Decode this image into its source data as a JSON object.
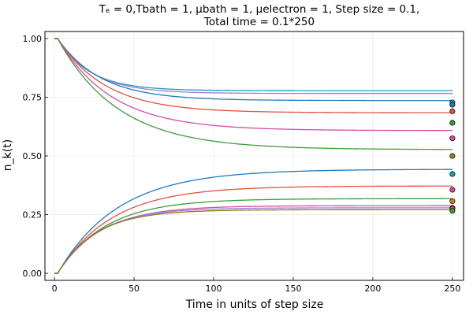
{
  "chart_data": {
    "type": "line",
    "title_line1": "Tₑ = 0,Tbath = 1, μbath = 1, μelectron = 1, Step size = 0.1,",
    "title_line2": "Total time = 0.1*250",
    "xlabel": "Time in units of step size",
    "ylabel": "n_k(t)",
    "xlim": [
      -6,
      257
    ],
    "ylim": [
      -0.03,
      1.03
    ],
    "xticks": [
      0,
      50,
      100,
      150,
      200,
      250
    ],
    "yticks": [
      0.0,
      0.25,
      0.5,
      0.75,
      1.0
    ],
    "ytick_labels": [
      "0.00",
      "0.25",
      "0.50",
      "0.75",
      "1.00"
    ],
    "grid": true,
    "legend": "none",
    "plot_type_notes": "Exponential relaxation curves from n=1 (decaying) and n=0 (rising) with final-value scatter markers at t=250",
    "series": [
      {
        "start": 1,
        "final": 0.778,
        "tau": 20,
        "color": "#189EBB"
      },
      {
        "start": 1,
        "final": 0.766,
        "tau": 22,
        "color": "#9C7FD0"
      },
      {
        "start": 1,
        "final": 0.736,
        "tau": 27,
        "color": "#1F78BE"
      },
      {
        "start": 1,
        "final": 0.684,
        "tau": 30,
        "color": "#E0533D"
      },
      {
        "start": 1,
        "final": 0.608,
        "tau": 34,
        "color": "#D54BA6"
      },
      {
        "start": 1,
        "final": 0.527,
        "tau": 38,
        "color": "#3A9E38"
      },
      {
        "start": 0,
        "final": 0.443,
        "tau": 38,
        "color": "#1F78BE"
      },
      {
        "start": 0,
        "final": 0.372,
        "tau": 34,
        "color": "#E0533D"
      },
      {
        "start": 0,
        "final": 0.318,
        "tau": 30,
        "color": "#3A9E38"
      },
      {
        "start": 0,
        "final": 0.288,
        "tau": 27,
        "color": "#D54BA6"
      },
      {
        "start": 0,
        "final": 0.279,
        "tau": 25,
        "color": "#9C7FD0"
      },
      {
        "start": 0,
        "final": 0.271,
        "tau": 24,
        "color": "#8A7A22"
      }
    ],
    "markers": {
      "x": 250,
      "points": [
        {
          "y": 0.728,
          "color": "#189EBB"
        },
        {
          "y": 0.718,
          "color": "#1F78BE"
        },
        {
          "y": 0.69,
          "color": "#E0533D"
        },
        {
          "y": 0.641,
          "color": "#3A9E38"
        },
        {
          "y": 0.575,
          "color": "#D54BA6"
        },
        {
          "y": 0.5,
          "color": "#9C7A22"
        },
        {
          "y": 0.423,
          "color": "#189EBB"
        },
        {
          "y": 0.356,
          "color": "#D54BA6"
        },
        {
          "y": 0.307,
          "color": "#C9801C"
        },
        {
          "y": 0.278,
          "color": "#1F78BE"
        },
        {
          "y": 0.275,
          "color": "#E0533D"
        },
        {
          "y": 0.266,
          "color": "#3A9E38"
        }
      ]
    }
  }
}
